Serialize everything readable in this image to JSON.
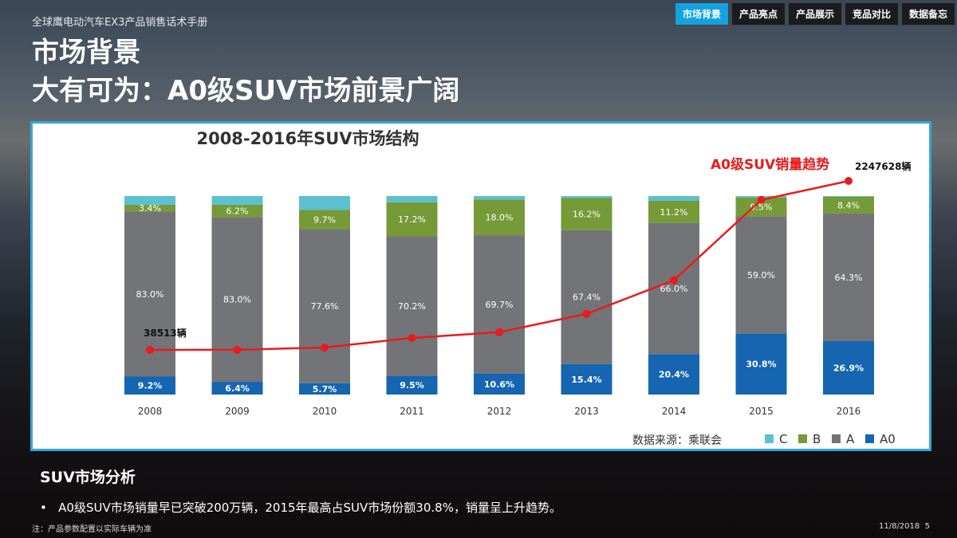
{
  "header": {
    "subtitle": "全球鹰电动汽车EX3产品销售话术手册",
    "title": "市场背景",
    "headline": "大有可为：A0级SUV市场前景广阔"
  },
  "nav": [
    {
      "label": "市场背景",
      "active": true
    },
    {
      "label": "产品亮点"
    },
    {
      "label": "产品展示"
    },
    {
      "label": "竞品对比"
    },
    {
      "label": "数据备忘"
    }
  ],
  "chart_data": {
    "type": "bar",
    "title": "2008-2016年SUV市场结构",
    "categories": [
      "2008",
      "2009",
      "2010",
      "2011",
      "2012",
      "2013",
      "2014",
      "2015",
      "2016"
    ],
    "stacked": true,
    "ylim": [
      0,
      100
    ],
    "series": [
      {
        "name": "A0",
        "color": "#1565b0",
        "values": [
          9.2,
          6.4,
          5.7,
          9.5,
          10.6,
          15.4,
          20.4,
          30.8,
          26.9
        ],
        "labels": [
          "9.2%",
          "6.4%",
          "5.7%",
          "9.5%",
          "10.6%",
          "15.4%",
          "20.4%",
          "30.8%",
          "26.9%"
        ]
      },
      {
        "name": "A",
        "color": "#737478",
        "values": [
          83.0,
          83.0,
          77.6,
          70.2,
          69.7,
          67.4,
          66.0,
          59.0,
          64.3
        ],
        "labels": [
          "83.0%",
          "83.0%",
          "77.6%",
          "70.2%",
          "69.7%",
          "67.4%",
          "66.0%",
          "59.0%",
          "64.3%"
        ]
      },
      {
        "name": "B",
        "color": "#769a37",
        "values": [
          3.4,
          6.2,
          9.7,
          17.2,
          18.0,
          16.2,
          11.2,
          9.5,
          8.4
        ],
        "labels": [
          "3.4%",
          "6.2%",
          "9.7%",
          "17.2%",
          "18.0%",
          "16.2%",
          "11.2%",
          "9.5%",
          "8.4%"
        ]
      },
      {
        "name": "C",
        "color": "#5bc0cf",
        "values": [
          4.4,
          4.4,
          7.0,
          3.1,
          1.7,
          1.0,
          2.4,
          0.7,
          0.4
        ]
      }
    ],
    "line": {
      "name": "A0级SUV销量趋势",
      "color": "#e81c1c",
      "values": [
        38513,
        40000,
        70000,
        195000,
        270000,
        510000,
        950000,
        2000000,
        2247628
      ],
      "first_label": "38513辆",
      "last_label": "2247628辆"
    },
    "source": "数据来源：乘联会",
    "legend": "bottom-right"
  },
  "analysis": {
    "title": "SUV市场分析",
    "bullet": "A0级SUV市场销量早已突破200万辆，2015年最高占SUV市场份额30.8%，销量呈上升趋势。"
  },
  "footer": {
    "note": "注：产品参数配置以实际车辆为准",
    "date": "11/8/2018",
    "page": "5"
  }
}
